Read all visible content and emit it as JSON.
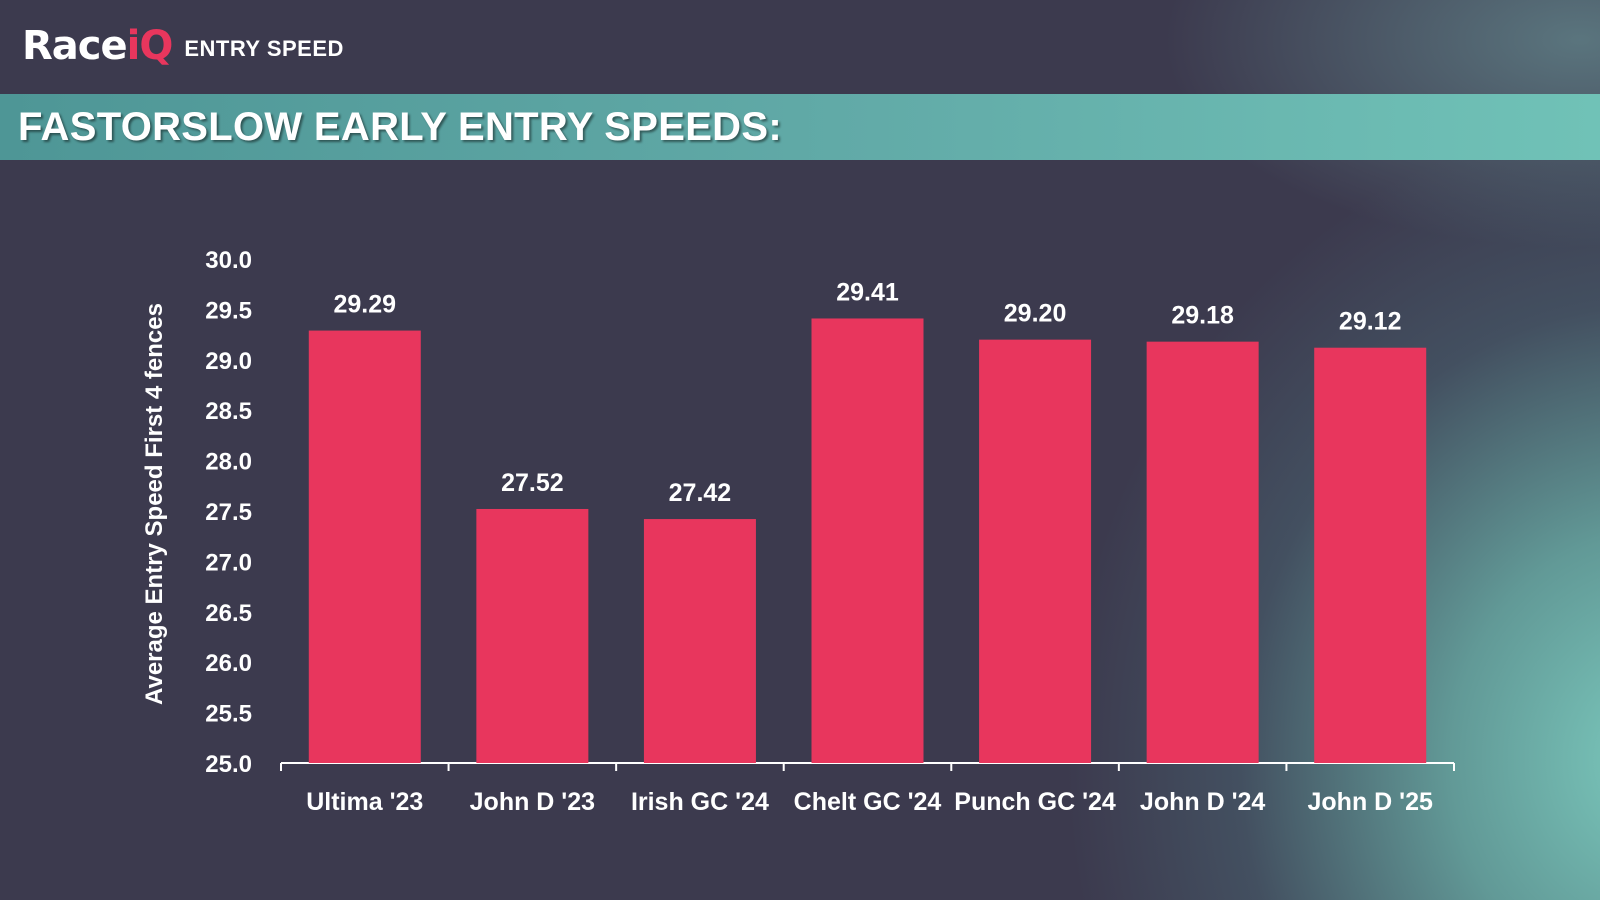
{
  "header": {
    "logo_main": "Race",
    "logo_accent": "iQ",
    "logo_sub": "ENTRY SPEED"
  },
  "banner": {
    "title": "FASTORSLOW EARLY ENTRY SPEEDS:"
  },
  "colors": {
    "bar": "#e8365d",
    "banner": "#62aba8",
    "background": "#3c3a4e",
    "text": "#ffffff"
  },
  "chart_data": {
    "type": "bar",
    "categories": [
      "Ultima '23",
      "John D '23",
      "Irish GC '24",
      "Chelt GC '24",
      "Punch GC '24",
      "John D '24",
      "John D '25"
    ],
    "values": [
      29.29,
      27.52,
      27.42,
      29.41,
      29.2,
      29.18,
      29.12
    ],
    "value_labels": [
      "29.29",
      "27.52",
      "27.42",
      "29.41",
      "29.20",
      "29.18",
      "29.12"
    ],
    "ylabel": "Average Entry Speed First 4 fences",
    "xlabel": "",
    "ylim": [
      25.0,
      30.0
    ],
    "yticks": [
      "25.0",
      "25.5",
      "26.0",
      "26.5",
      "27.0",
      "27.5",
      "28.0",
      "28.5",
      "29.0",
      "29.5",
      "30.0"
    ],
    "grid": false,
    "legend": "none"
  }
}
